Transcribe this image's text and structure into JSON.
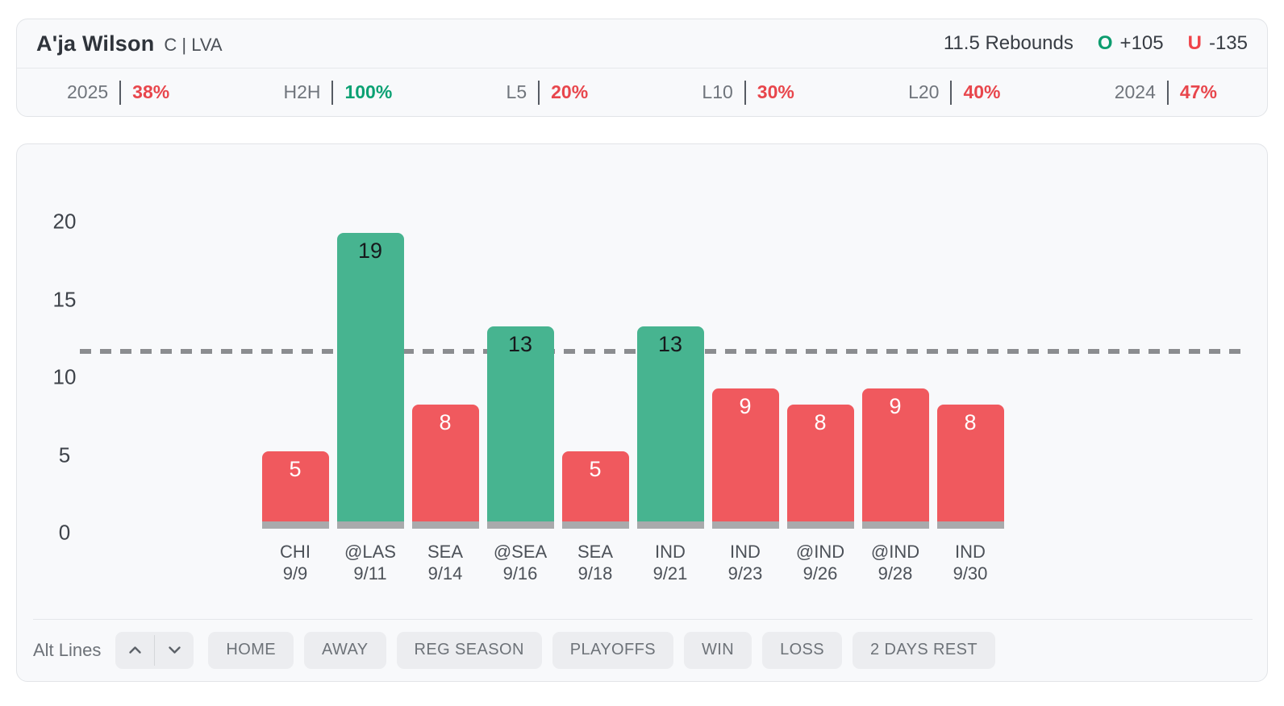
{
  "header": {
    "player_name": "A'ja Wilson",
    "position": "C | LVA",
    "prop_line_label": "11.5 Rebounds",
    "over_letter": "O",
    "over_odds": "+105",
    "under_letter": "U",
    "under_odds": "-135"
  },
  "stats": [
    {
      "label": "2025",
      "value": "38%",
      "color": "red"
    },
    {
      "label": "H2H",
      "value": "100%",
      "color": "green"
    },
    {
      "label": "L5",
      "value": "20%",
      "color": "red"
    },
    {
      "label": "L10",
      "value": "30%",
      "color": "red"
    },
    {
      "label": "L20",
      "value": "40%",
      "color": "red"
    },
    {
      "label": "2024",
      "value": "47%",
      "color": "red"
    }
  ],
  "chart_data": {
    "type": "bar",
    "categories": [
      {
        "team": "CHI",
        "date": "9/9"
      },
      {
        "team": "@LAS",
        "date": "9/11"
      },
      {
        "team": "SEA",
        "date": "9/14"
      },
      {
        "team": "@SEA",
        "date": "9/16"
      },
      {
        "team": "SEA",
        "date": "9/18"
      },
      {
        "team": "IND",
        "date": "9/21"
      },
      {
        "team": "IND",
        "date": "9/23"
      },
      {
        "team": "@IND",
        "date": "9/26"
      },
      {
        "team": "@IND",
        "date": "9/28"
      },
      {
        "team": "IND",
        "date": "9/30"
      }
    ],
    "values": [
      5,
      19,
      8,
      13,
      5,
      13,
      9,
      8,
      9,
      8
    ],
    "prop_line": 11.5,
    "yticks": [
      0,
      5,
      10,
      15,
      20
    ],
    "ylim": [
      0,
      22
    ],
    "grid": false,
    "legend": "none"
  },
  "colors": {
    "over_bar": "#47b490",
    "under_bar": "#f0595e",
    "bar_base": "#a9aaac",
    "prop_line": "#8b8d90",
    "over_text": "#0c9c6e",
    "under_text": "#ef4349",
    "stat_green": "#0ba173",
    "stat_red": "#e8464c",
    "value_on_over": "#17191c",
    "value_on_under": "#ffffff"
  },
  "controls": {
    "alt_lines_label": "Alt Lines",
    "filters": [
      "HOME",
      "AWAY",
      "REG SEASON",
      "PLAYOFFS",
      "WIN",
      "LOSS",
      "2 DAYS REST"
    ]
  }
}
